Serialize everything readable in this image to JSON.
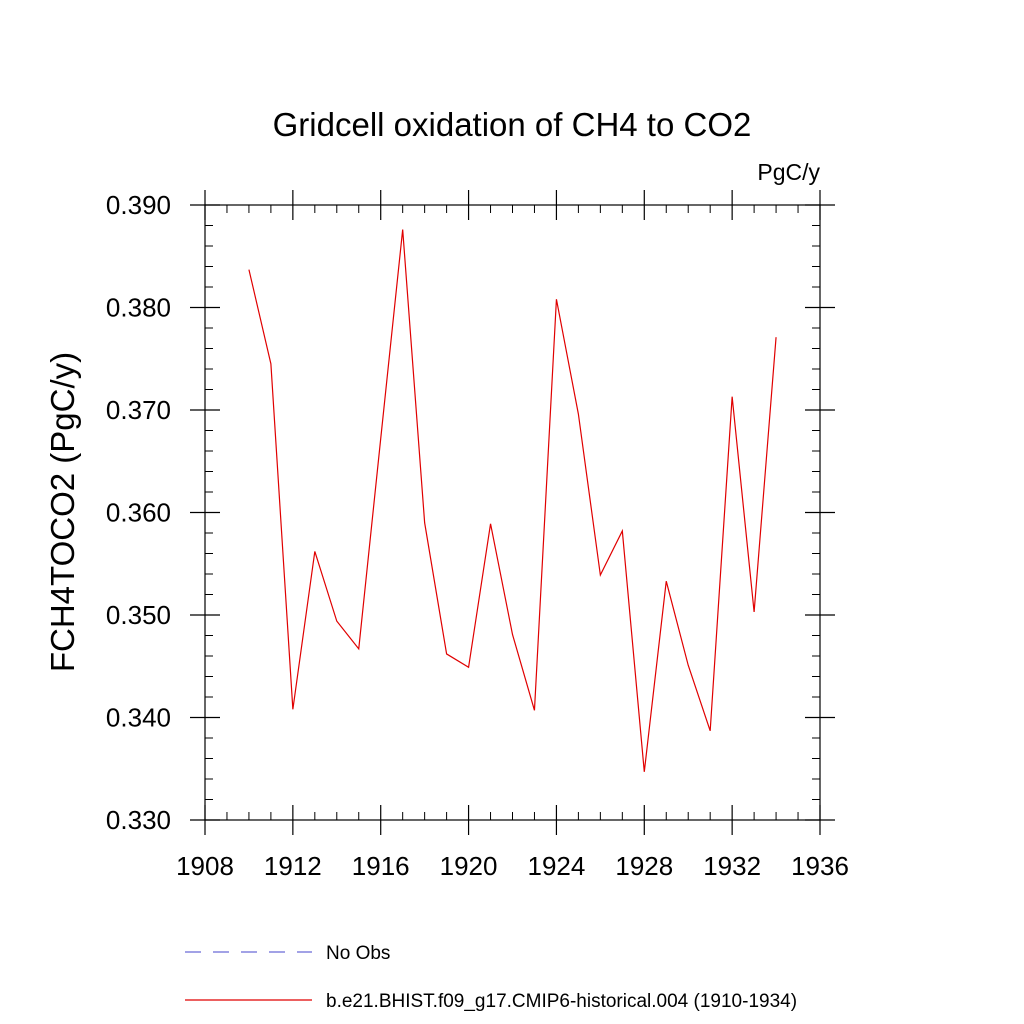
{
  "chart_data": {
    "type": "line",
    "title": "Gridcell oxidation of CH4 to CO2",
    "units": "PgC/y",
    "ylabel": "FCH4TOCO2  (PgC/y)",
    "xlabel": "",
    "xlim": [
      1908,
      1936
    ],
    "ylim": [
      0.33,
      0.39
    ],
    "x_ticks": [
      1908,
      1912,
      1916,
      1920,
      1924,
      1928,
      1932,
      1936
    ],
    "x_tick_labels": [
      "1908",
      "1912",
      "1916",
      "1920",
      "1924",
      "1928",
      "1932",
      "1936"
    ],
    "y_ticks": [
      0.33,
      0.34,
      0.35,
      0.36,
      0.37,
      0.38,
      0.39
    ],
    "y_tick_labels": [
      "0.330",
      "0.340",
      "0.350",
      "0.360",
      "0.370",
      "0.380",
      "0.390"
    ],
    "grid": false,
    "legend_position": "bottom",
    "series": [
      {
        "name": "No Obs",
        "color": "#6b6bd6",
        "dash": true,
        "x": [],
        "y": []
      },
      {
        "name": "b.e21.BHIST.f09_g17.CMIP6-historical.004 (1910-1934)",
        "color": "#e00000",
        "dash": false,
        "x": [
          1910,
          1911,
          1912,
          1913,
          1914,
          1915,
          1916,
          1917,
          1918,
          1919,
          1920,
          1921,
          1922,
          1923,
          1924,
          1925,
          1926,
          1927,
          1928,
          1929,
          1930,
          1931,
          1932,
          1933,
          1934
        ],
        "y": [
          0.3837,
          0.3745,
          0.3408,
          0.3562,
          0.3494,
          0.3467,
          0.3672,
          0.3876,
          0.359,
          0.3462,
          0.3449,
          0.3589,
          0.3481,
          0.3407,
          0.3808,
          0.3696,
          0.3539,
          0.3582,
          0.3347,
          0.3533,
          0.3451,
          0.3387,
          0.3713,
          0.3503,
          0.3771
        ]
      }
    ]
  }
}
